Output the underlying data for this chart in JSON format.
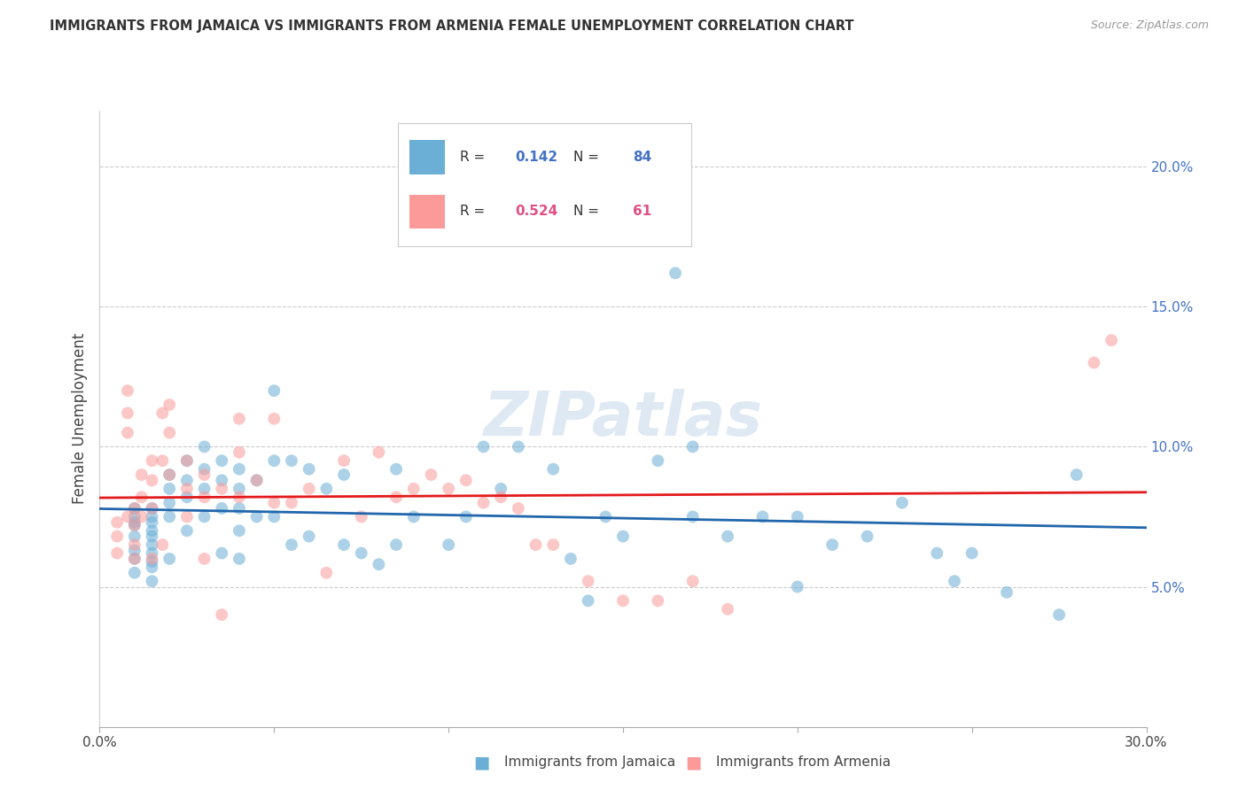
{
  "title": "IMMIGRANTS FROM JAMAICA VS IMMIGRANTS FROM ARMENIA FEMALE UNEMPLOYMENT CORRELATION CHART",
  "source": "Source: ZipAtlas.com",
  "ylabel": "Female Unemployment",
  "xlim": [
    0.0,
    0.3
  ],
  "ylim": [
    0.0,
    0.22
  ],
  "yticks": [
    0.05,
    0.1,
    0.15,
    0.2
  ],
  "ytick_labels": [
    "5.0%",
    "10.0%",
    "15.0%",
    "20.0%"
  ],
  "xticks": [
    0.0,
    0.05,
    0.1,
    0.15,
    0.2,
    0.25,
    0.3
  ],
  "xtick_labels": [
    "0.0%",
    "",
    "",
    "",
    "",
    "",
    "30.0%"
  ],
  "jamaica_R": "0.142",
  "jamaica_N": "84",
  "armenia_R": "0.524",
  "armenia_N": "61",
  "jamaica_color": "#6baed6",
  "armenia_color": "#fb9a99",
  "jamaica_line_color": "#2166ac",
  "armenia_line_color": "#e31a1c",
  "watermark": "ZIPatlas",
  "legend_label_jamaica": "Immigrants from Jamaica",
  "legend_label_armenia": "Immigrants from Armenia",
  "jamaica_x": [
    0.01,
    0.01,
    0.01,
    0.01,
    0.01,
    0.01,
    0.01,
    0.01,
    0.015,
    0.015,
    0.015,
    0.015,
    0.015,
    0.015,
    0.015,
    0.015,
    0.015,
    0.015,
    0.02,
    0.02,
    0.02,
    0.02,
    0.02,
    0.025,
    0.025,
    0.025,
    0.025,
    0.03,
    0.03,
    0.03,
    0.03,
    0.035,
    0.035,
    0.035,
    0.035,
    0.04,
    0.04,
    0.04,
    0.04,
    0.04,
    0.045,
    0.045,
    0.05,
    0.05,
    0.05,
    0.055,
    0.055,
    0.06,
    0.06,
    0.065,
    0.07,
    0.07,
    0.075,
    0.08,
    0.085,
    0.085,
    0.09,
    0.1,
    0.105,
    0.11,
    0.115,
    0.12,
    0.13,
    0.135,
    0.14,
    0.145,
    0.15,
    0.16,
    0.165,
    0.17,
    0.17,
    0.18,
    0.19,
    0.2,
    0.2,
    0.21,
    0.22,
    0.23,
    0.24,
    0.245,
    0.25,
    0.26,
    0.275,
    0.28
  ],
  "jamaica_y": [
    0.073,
    0.075,
    0.078,
    0.072,
    0.068,
    0.063,
    0.06,
    0.055,
    0.078,
    0.075,
    0.073,
    0.07,
    0.068,
    0.065,
    0.062,
    0.059,
    0.057,
    0.052,
    0.09,
    0.085,
    0.08,
    0.075,
    0.06,
    0.095,
    0.088,
    0.082,
    0.07,
    0.1,
    0.092,
    0.085,
    0.075,
    0.095,
    0.088,
    0.078,
    0.062,
    0.092,
    0.085,
    0.078,
    0.07,
    0.06,
    0.088,
    0.075,
    0.12,
    0.095,
    0.075,
    0.095,
    0.065,
    0.092,
    0.068,
    0.085,
    0.09,
    0.065,
    0.062,
    0.058,
    0.092,
    0.065,
    0.075,
    0.065,
    0.075,
    0.1,
    0.085,
    0.1,
    0.092,
    0.06,
    0.045,
    0.075,
    0.068,
    0.095,
    0.162,
    0.1,
    0.075,
    0.068,
    0.075,
    0.075,
    0.05,
    0.065,
    0.068,
    0.08,
    0.062,
    0.052,
    0.062,
    0.048,
    0.04,
    0.09
  ],
  "armenia_x": [
    0.005,
    0.005,
    0.005,
    0.008,
    0.008,
    0.008,
    0.008,
    0.01,
    0.01,
    0.01,
    0.01,
    0.012,
    0.012,
    0.012,
    0.015,
    0.015,
    0.015,
    0.015,
    0.018,
    0.018,
    0.018,
    0.02,
    0.02,
    0.02,
    0.025,
    0.025,
    0.025,
    0.03,
    0.03,
    0.03,
    0.035,
    0.035,
    0.04,
    0.04,
    0.04,
    0.045,
    0.05,
    0.05,
    0.055,
    0.06,
    0.065,
    0.07,
    0.075,
    0.08,
    0.085,
    0.09,
    0.095,
    0.1,
    0.105,
    0.11,
    0.115,
    0.12,
    0.125,
    0.13,
    0.14,
    0.15,
    0.16,
    0.17,
    0.18,
    0.285,
    0.29
  ],
  "armenia_y": [
    0.073,
    0.068,
    0.062,
    0.075,
    0.12,
    0.112,
    0.105,
    0.078,
    0.072,
    0.065,
    0.06,
    0.09,
    0.082,
    0.075,
    0.095,
    0.088,
    0.078,
    0.06,
    0.112,
    0.095,
    0.065,
    0.115,
    0.105,
    0.09,
    0.095,
    0.085,
    0.075,
    0.09,
    0.082,
    0.06,
    0.085,
    0.04,
    0.11,
    0.098,
    0.082,
    0.088,
    0.11,
    0.08,
    0.08,
    0.085,
    0.055,
    0.095,
    0.075,
    0.098,
    0.082,
    0.085,
    0.09,
    0.085,
    0.088,
    0.08,
    0.082,
    0.078,
    0.065,
    0.065,
    0.052,
    0.045,
    0.045,
    0.052,
    0.042,
    0.13,
    0.138
  ]
}
